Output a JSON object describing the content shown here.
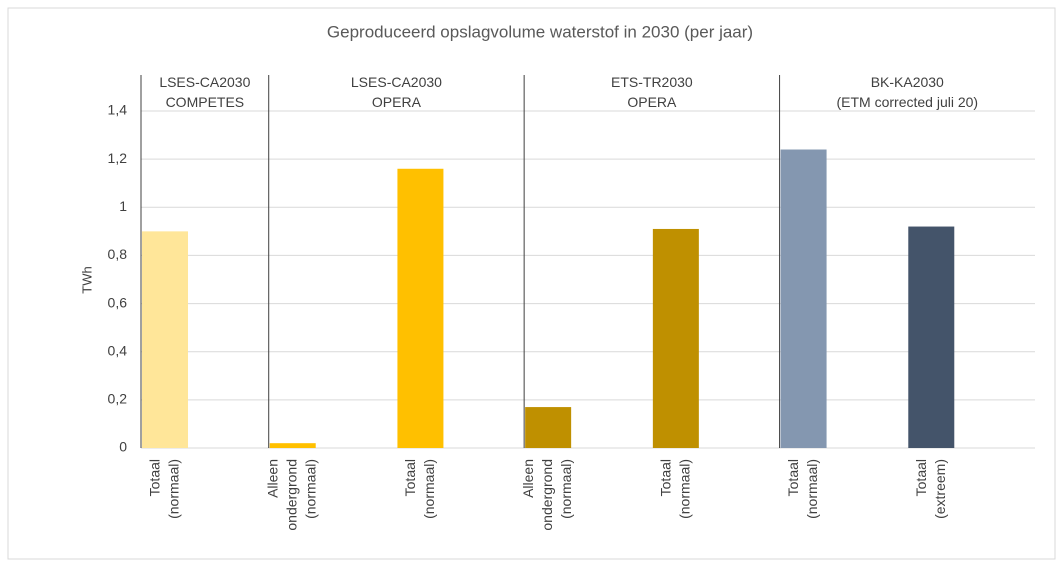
{
  "chart_data": {
    "type": "bar",
    "title": "Geproduceerd opslagvolume waterstof in 2030 (per jaar)",
    "y_label": "TWh",
    "categories": [
      "Totaal (normaal)",
      "Alleen ondergrond (normaal)",
      "Totaal (normaal)",
      "Alleen ondergrond (normaal)",
      "Totaal (normaal)",
      "Totaal (normaal)",
      "Totaal (extreem)"
    ],
    "values": [
      0.9,
      0.02,
      1.16,
      0.17,
      0.91,
      1.24,
      0.92
    ],
    "colors": [
      "#ffe699",
      "#ffc000",
      "#ffc000",
      "#bf9000",
      "#bf9000",
      "#8497b0",
      "#44546a"
    ],
    "groups": [
      {
        "name": "LSES-CA2030 COMPETES",
        "count": 1
      },
      {
        "name": "LSES-CA2030 OPERA",
        "count": 2
      },
      {
        "name": "ETS-TR2030 OPERA",
        "count": 2
      },
      {
        "name": "BK-KA2030 (ETM corrected juli 20)",
        "count": 2
      }
    ],
    "ylim": [
      0,
      1.4
    ],
    "yticks": [
      0,
      {
        "value": 0.2,
        "label": "0,2"
      },
      {
        "value": 0.4,
        "label": "0,4"
      },
      {
        "value": 0.6,
        "label": "0,6"
      },
      {
        "value": 0.8,
        "label": "0,8"
      },
      1,
      {
        "value": 1.2,
        "label": "1,2"
      },
      {
        "value": 1.4,
        "label": "1,4"
      }
    ],
    "grid": true
  }
}
